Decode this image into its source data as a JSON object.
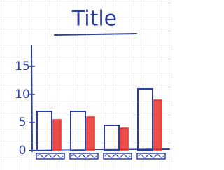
{
  "chart_data": {
    "type": "bar",
    "title": "Title",
    "categories": [
      null,
      null,
      null,
      null
    ],
    "series": [
      {
        "color": "#2b3fa0",
        "values": [
          7,
          7,
          4.5,
          11
        ]
      },
      {
        "color": "#e8302a",
        "values": [
          5.5,
          6,
          4,
          9
        ]
      }
    ],
    "ylim": [
      0,
      18
    ],
    "yticks": [
      0,
      5,
      10,
      15
    ]
  }
}
